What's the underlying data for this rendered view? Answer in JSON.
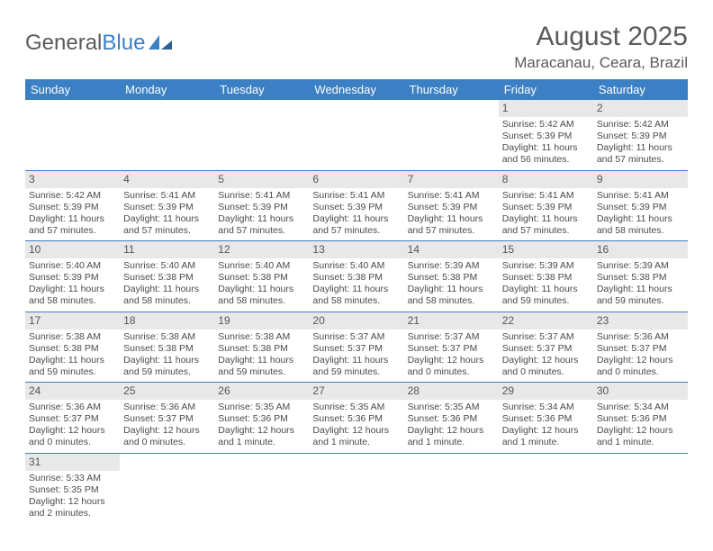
{
  "logo": {
    "part1": "General",
    "part2": "Blue"
  },
  "title": "August 2025",
  "location": "Maracanau, Ceara, Brazil",
  "weekdays": [
    "Sunday",
    "Monday",
    "Tuesday",
    "Wednesday",
    "Thursday",
    "Friday",
    "Saturday"
  ],
  "colors": {
    "header_bg": "#3b7fc4",
    "header_text": "#ffffff",
    "daynum_bg": "#e8e8e8",
    "border": "#3b7fc4",
    "text": "#4a4a4a",
    "title_text": "#5a5a5a"
  },
  "fonts": {
    "title_size": 30,
    "location_size": 17,
    "th_size": 13,
    "cell_size": 10.5,
    "daynum_size": 12
  },
  "grid": {
    "rows": 6,
    "cols": 7,
    "first_day_col": 5,
    "days_in_month": 31
  },
  "days": {
    "1": {
      "sunrise": "5:42 AM",
      "sunset": "5:39 PM",
      "daylight": "11 hours and 56 minutes."
    },
    "2": {
      "sunrise": "5:42 AM",
      "sunset": "5:39 PM",
      "daylight": "11 hours and 57 minutes."
    },
    "3": {
      "sunrise": "5:42 AM",
      "sunset": "5:39 PM",
      "daylight": "11 hours and 57 minutes."
    },
    "4": {
      "sunrise": "5:41 AM",
      "sunset": "5:39 PM",
      "daylight": "11 hours and 57 minutes."
    },
    "5": {
      "sunrise": "5:41 AM",
      "sunset": "5:39 PM",
      "daylight": "11 hours and 57 minutes."
    },
    "6": {
      "sunrise": "5:41 AM",
      "sunset": "5:39 PM",
      "daylight": "11 hours and 57 minutes."
    },
    "7": {
      "sunrise": "5:41 AM",
      "sunset": "5:39 PM",
      "daylight": "11 hours and 57 minutes."
    },
    "8": {
      "sunrise": "5:41 AM",
      "sunset": "5:39 PM",
      "daylight": "11 hours and 57 minutes."
    },
    "9": {
      "sunrise": "5:41 AM",
      "sunset": "5:39 PM",
      "daylight": "11 hours and 58 minutes."
    },
    "10": {
      "sunrise": "5:40 AM",
      "sunset": "5:39 PM",
      "daylight": "11 hours and 58 minutes."
    },
    "11": {
      "sunrise": "5:40 AM",
      "sunset": "5:38 PM",
      "daylight": "11 hours and 58 minutes."
    },
    "12": {
      "sunrise": "5:40 AM",
      "sunset": "5:38 PM",
      "daylight": "11 hours and 58 minutes."
    },
    "13": {
      "sunrise": "5:40 AM",
      "sunset": "5:38 PM",
      "daylight": "11 hours and 58 minutes."
    },
    "14": {
      "sunrise": "5:39 AM",
      "sunset": "5:38 PM",
      "daylight": "11 hours and 58 minutes."
    },
    "15": {
      "sunrise": "5:39 AM",
      "sunset": "5:38 PM",
      "daylight": "11 hours and 59 minutes."
    },
    "16": {
      "sunrise": "5:39 AM",
      "sunset": "5:38 PM",
      "daylight": "11 hours and 59 minutes."
    },
    "17": {
      "sunrise": "5:38 AM",
      "sunset": "5:38 PM",
      "daylight": "11 hours and 59 minutes."
    },
    "18": {
      "sunrise": "5:38 AM",
      "sunset": "5:38 PM",
      "daylight": "11 hours and 59 minutes."
    },
    "19": {
      "sunrise": "5:38 AM",
      "sunset": "5:38 PM",
      "daylight": "11 hours and 59 minutes."
    },
    "20": {
      "sunrise": "5:37 AM",
      "sunset": "5:37 PM",
      "daylight": "11 hours and 59 minutes."
    },
    "21": {
      "sunrise": "5:37 AM",
      "sunset": "5:37 PM",
      "daylight": "12 hours and 0 minutes."
    },
    "22": {
      "sunrise": "5:37 AM",
      "sunset": "5:37 PM",
      "daylight": "12 hours and 0 minutes."
    },
    "23": {
      "sunrise": "5:36 AM",
      "sunset": "5:37 PM",
      "daylight": "12 hours and 0 minutes."
    },
    "24": {
      "sunrise": "5:36 AM",
      "sunset": "5:37 PM",
      "daylight": "12 hours and 0 minutes."
    },
    "25": {
      "sunrise": "5:36 AM",
      "sunset": "5:37 PM",
      "daylight": "12 hours and 0 minutes."
    },
    "26": {
      "sunrise": "5:35 AM",
      "sunset": "5:36 PM",
      "daylight": "12 hours and 1 minute."
    },
    "27": {
      "sunrise": "5:35 AM",
      "sunset": "5:36 PM",
      "daylight": "12 hours and 1 minute."
    },
    "28": {
      "sunrise": "5:35 AM",
      "sunset": "5:36 PM",
      "daylight": "12 hours and 1 minute."
    },
    "29": {
      "sunrise": "5:34 AM",
      "sunset": "5:36 PM",
      "daylight": "12 hours and 1 minute."
    },
    "30": {
      "sunrise": "5:34 AM",
      "sunset": "5:36 PM",
      "daylight": "12 hours and 1 minute."
    },
    "31": {
      "sunrise": "5:33 AM",
      "sunset": "5:35 PM",
      "daylight": "12 hours and 2 minutes."
    }
  },
  "labels": {
    "sunrise": "Sunrise: ",
    "sunset": "Sunset: ",
    "daylight": "Daylight: "
  }
}
